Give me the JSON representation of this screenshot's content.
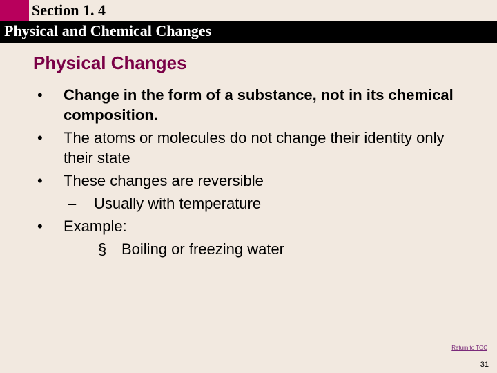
{
  "header": {
    "section_label": "Section 1. 4",
    "section_title": "Physical and Chemical Changes"
  },
  "topic_title": "Physical Changes",
  "bullets": [
    {
      "level": 1,
      "bold": true,
      "marker": "•",
      "text": "Change in the form of a substance, not in its chemical composition."
    },
    {
      "level": 1,
      "bold": false,
      "marker": "•",
      "text": "The atoms or molecules do not change their identity only their state"
    },
    {
      "level": 1,
      "bold": false,
      "marker": "•",
      "text": "These changes are reversible"
    },
    {
      "level": 2,
      "bold": false,
      "marker": "–",
      "text": "Usually with temperature"
    },
    {
      "level": 1,
      "bold": false,
      "marker": "•",
      "text": "Example:"
    },
    {
      "level": 3,
      "bold": false,
      "marker": "§",
      "text": "Boiling or freezing water"
    }
  ],
  "footer": {
    "return_link": "Return to TOC",
    "page_number": "31"
  },
  "colors": {
    "background": "#f2e9e0",
    "accent_magenta": "#b8005c",
    "title_maroon": "#7a0046",
    "link_purple": "#7a2a7a"
  }
}
